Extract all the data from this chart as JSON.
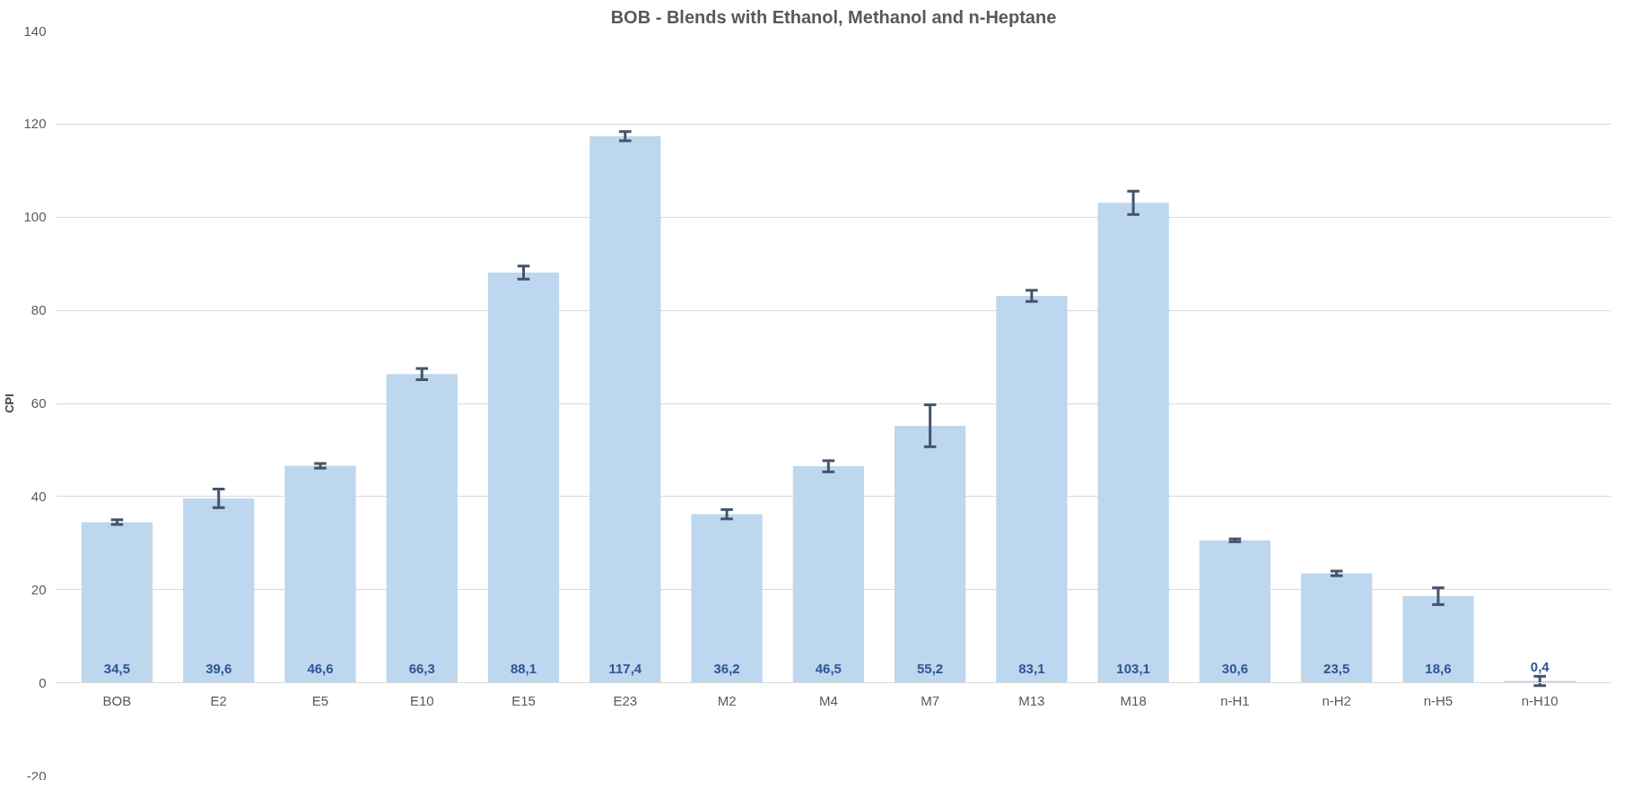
{
  "chart_data": {
    "type": "bar",
    "title": "BOB - Blends with Ethanol, Methanol and n-Heptane",
    "ylabel": "CPI",
    "categories": [
      "BOB",
      "E2",
      "E5",
      "E10",
      "E15",
      "E23",
      "M2",
      "M4",
      "M7",
      "M13",
      "M18",
      "n-H1",
      "n-H2",
      "n-H5",
      "n-H10"
    ],
    "values": [
      34.5,
      39.6,
      46.6,
      66.3,
      88.1,
      117.4,
      36.2,
      46.5,
      55.2,
      83.1,
      103.1,
      30.6,
      23.5,
      18.6,
      0.4
    ],
    "errors": [
      0.5,
      2,
      0.5,
      1.2,
      1.4,
      1,
      1,
      1.2,
      4.5,
      1.2,
      2.5,
      0.3,
      0.5,
      1.8,
      1
    ],
    "value_labels": [
      "34,5",
      "39,6",
      "46,6",
      "66,3",
      "88,1",
      "117,4",
      "36,2",
      "46,5",
      "55,2",
      "83,1",
      "103,1",
      "30,6",
      "23,5",
      "18,6",
      "0,4"
    ],
    "color": "#bdd7ee",
    "ylim": [
      -20,
      140
    ],
    "yticks": [
      -20,
      0,
      20,
      40,
      60,
      80,
      100,
      120,
      140
    ],
    "grid": "y"
  }
}
